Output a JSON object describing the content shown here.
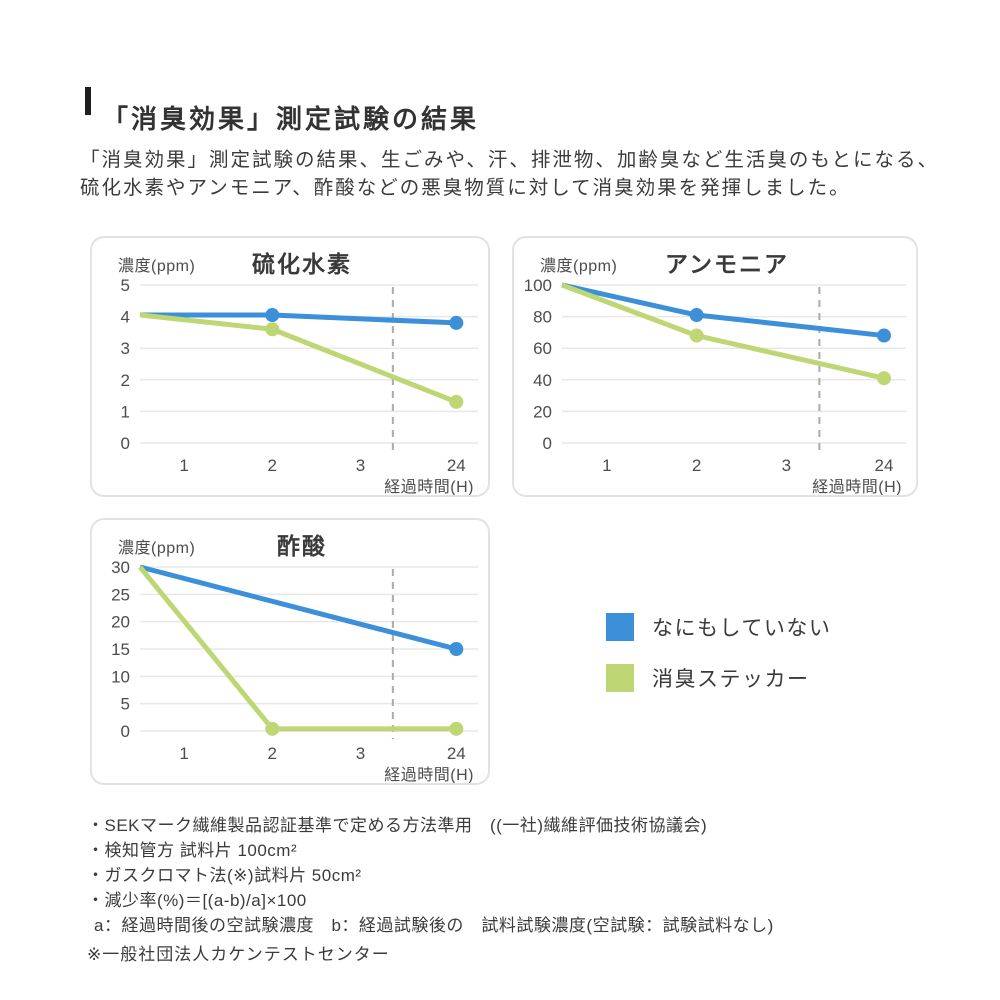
{
  "header": {
    "title": "「消臭効果」測定試験の結果",
    "body_line1": "「消臭効果」測定試験の結果、生ごみや、汗、排泄物、加齢臭など生活臭のもとになる、",
    "body_line2": "硫化水素やアンモニア、酢酸などの悪臭物質に対して消臭効果を発揮しました。"
  },
  "colors": {
    "blue": "#3b90d9",
    "green": "#bfd674",
    "grid": "#e8e8e8",
    "dashed_guide": "#ababab",
    "panel_border": "#e2e2e2",
    "text": "#3a3a3a",
    "tick_text": "#4d4d4d"
  },
  "legend": {
    "items": [
      {
        "label": "なにもしていない",
        "color_key": "blue"
      },
      {
        "label": "消臭ステッカー",
        "color_key": "green"
      }
    ]
  },
  "chart_data": [
    {
      "type": "line",
      "title": "硫化水素",
      "y_axis_label": "濃度(ppm)",
      "x_axis_label": "経過時間(H)",
      "x_ticks": [
        "1",
        "2",
        "3",
        "24"
      ],
      "y_ticks": [
        5,
        4,
        3,
        2,
        1,
        0
      ],
      "ylim": [
        0,
        5
      ],
      "xlim_note": "x axis breaks between 3 and 24 (dashed guide line)",
      "dashed_vertical_guide": true,
      "grid": true,
      "series": [
        {
          "name": "なにもしていない",
          "color_key": "blue",
          "points": [
            [
              0,
              4.05
            ],
            [
              2,
              4.05
            ],
            [
              24,
              3.8
            ]
          ]
        },
        {
          "name": "消臭ステッカー",
          "color_key": "green",
          "points": [
            [
              0,
              4.05
            ],
            [
              2,
              3.6
            ],
            [
              24,
              1.3
            ]
          ]
        }
      ]
    },
    {
      "type": "line",
      "title": "アンモニア",
      "y_axis_label": "濃度(ppm)",
      "x_axis_label": "経過時間(H)",
      "x_ticks": [
        "1",
        "2",
        "3",
        "24"
      ],
      "y_ticks": [
        100,
        80,
        60,
        40,
        20,
        0
      ],
      "ylim": [
        0,
        100
      ],
      "xlim_note": "x axis breaks between 3 and 24 (dashed guide line)",
      "dashed_vertical_guide": true,
      "grid": true,
      "series": [
        {
          "name": "なにもしていない",
          "color_key": "blue",
          "points": [
            [
              0,
              100
            ],
            [
              2,
              81
            ],
            [
              24,
              68
            ]
          ]
        },
        {
          "name": "消臭ステッカー",
          "color_key": "green",
          "points": [
            [
              0,
              100
            ],
            [
              2,
              68
            ],
            [
              24,
              41
            ]
          ]
        }
      ]
    },
    {
      "type": "line",
      "title": "酢酸",
      "y_axis_label": "濃度(ppm)",
      "x_axis_label": "経過時間(H)",
      "x_ticks": [
        "1",
        "2",
        "3",
        "24"
      ],
      "y_ticks": [
        30,
        25,
        20,
        15,
        10,
        5,
        0
      ],
      "ylim": [
        0,
        30
      ],
      "xlim_note": "x axis breaks between 3 and 24 (dashed guide line)",
      "dashed_vertical_guide": true,
      "grid": true,
      "series": [
        {
          "name": "なにもしていない",
          "color_key": "blue",
          "points": [
            [
              0,
              30
            ],
            [
              24,
              15
            ]
          ]
        },
        {
          "name": "消臭ステッカー",
          "color_key": "green",
          "points": [
            [
              0,
              30
            ],
            [
              2,
              0.4
            ],
            [
              24,
              0.4
            ]
          ]
        }
      ]
    }
  ],
  "footnotes": [
    "・SEKマーク繊維製品認証基準で定める方法準用　((一社)繊維評価技術協議会)",
    "・検知管方 試料片 100cm²",
    "・ガスクロマト法(※)試料片 50cm²",
    "・減少率(%)＝[(a-b)/a]×100",
    "a：経過時間後の空試験濃度　b：経過試験後の　試料試験濃度(空試験：試験試料なし)"
  ],
  "asterisk_note": "※一般社団法人カケンテストセンター"
}
